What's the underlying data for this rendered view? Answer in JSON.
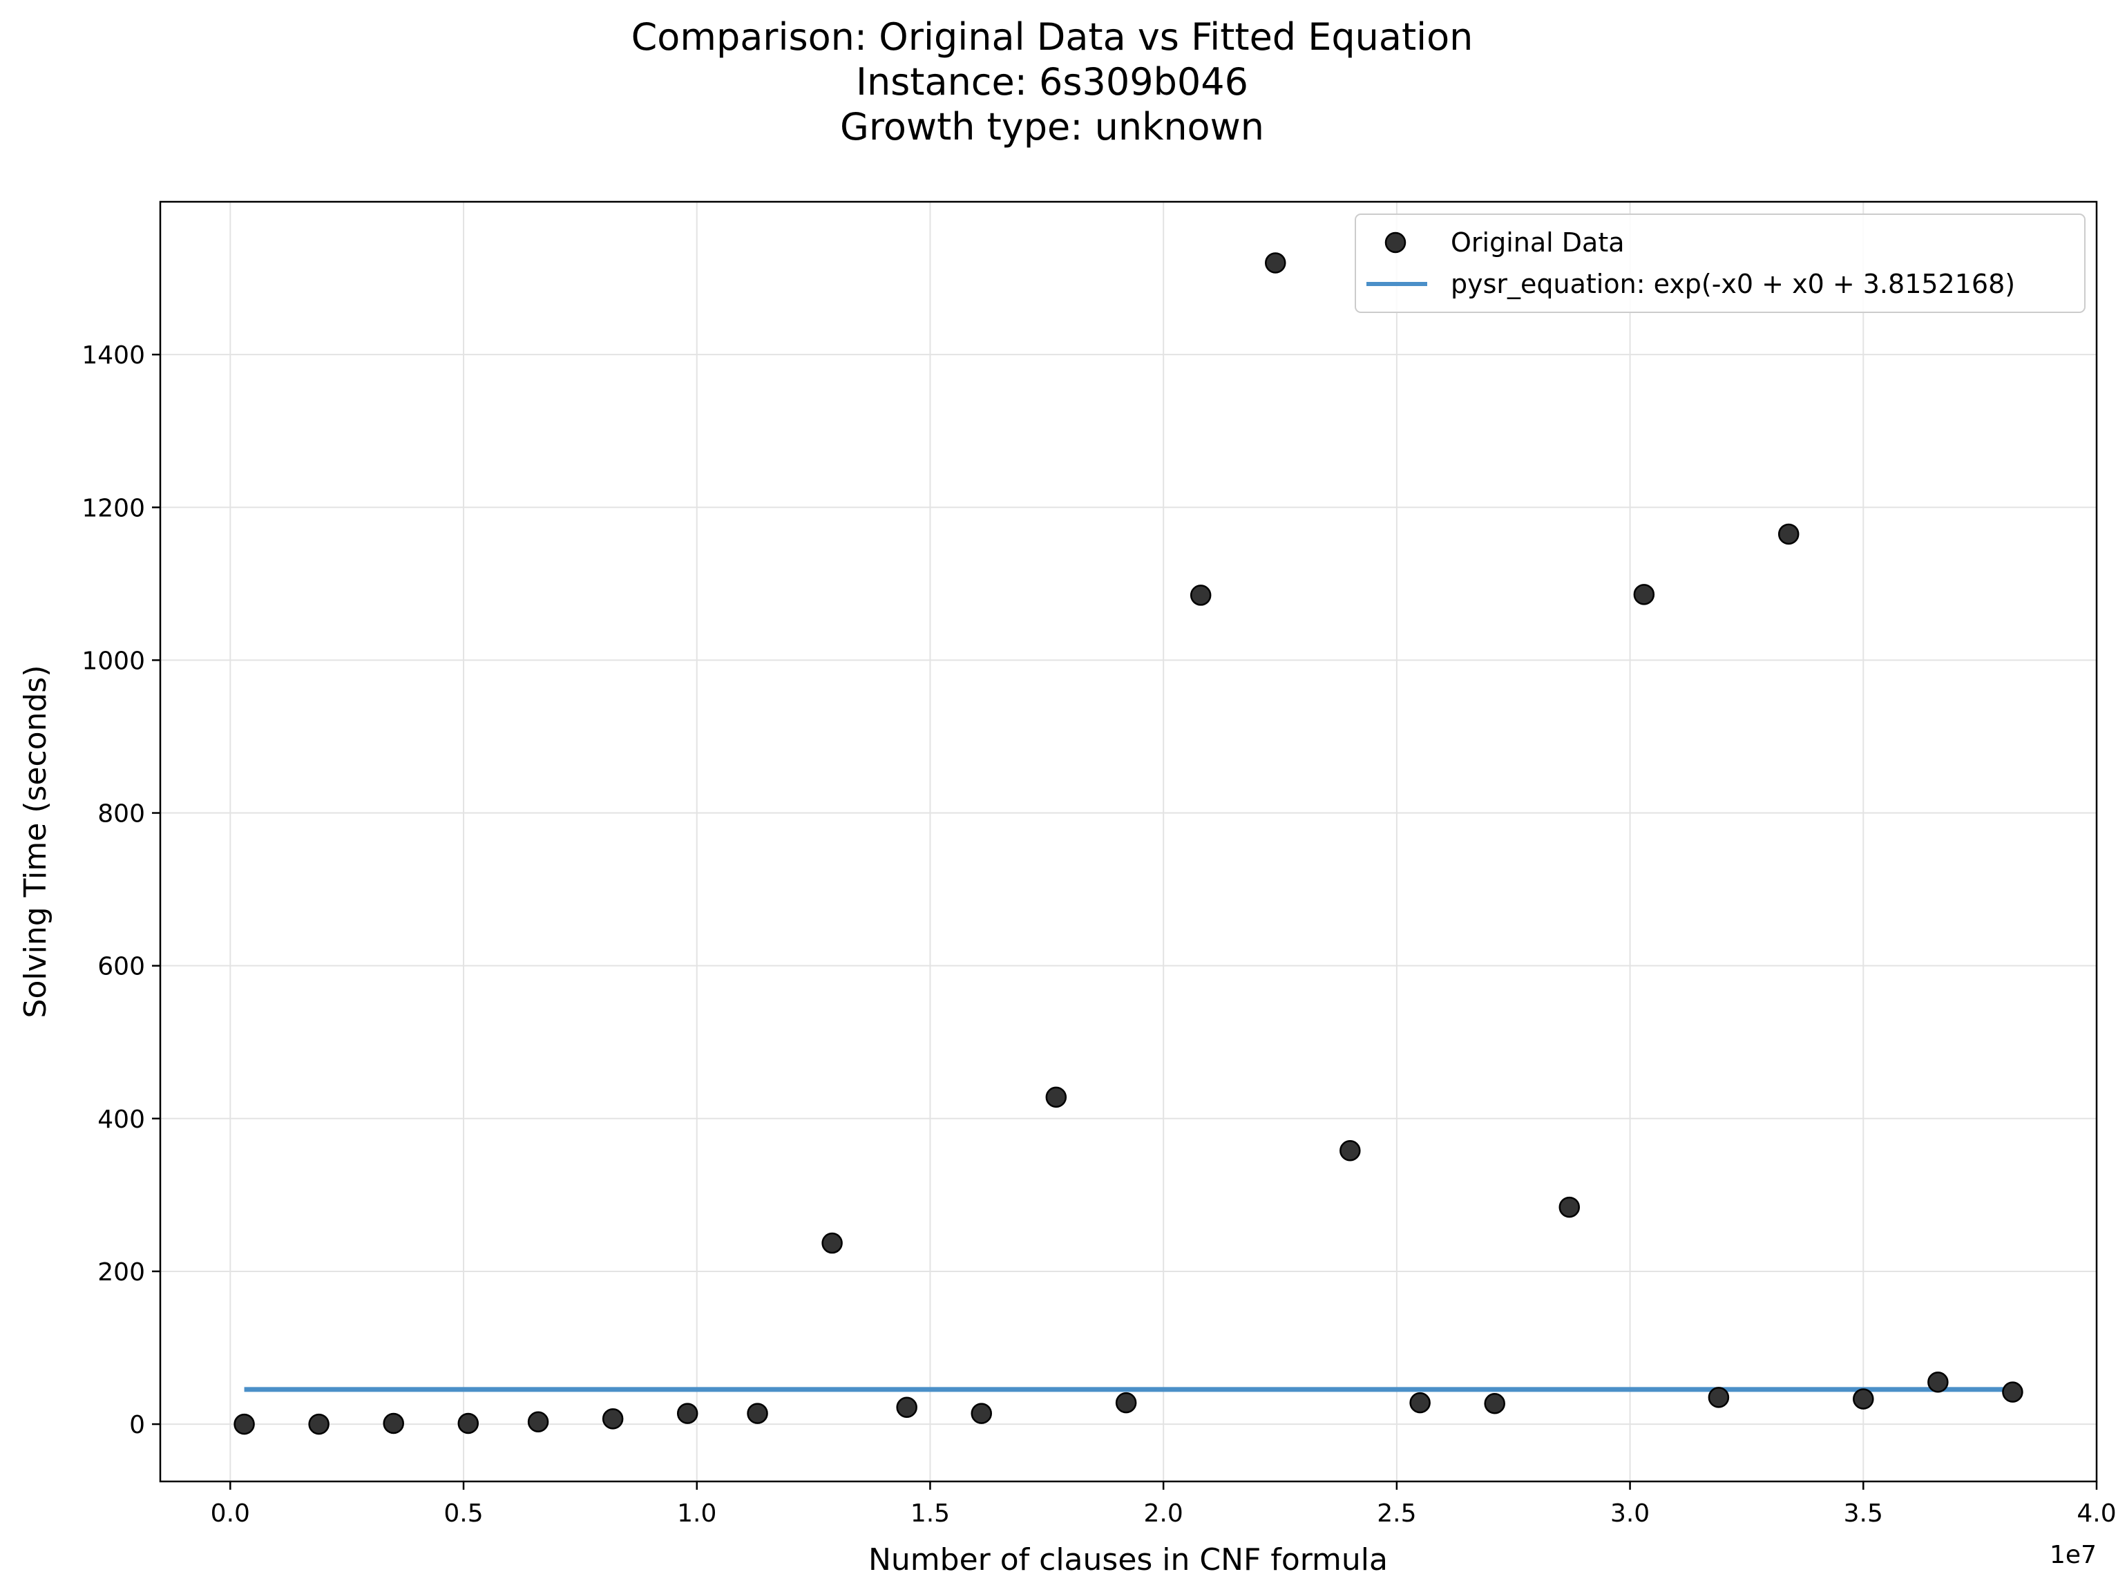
{
  "chart_data": {
    "type": "scatter",
    "title": [
      "Comparison: Original Data vs Fitted Equation",
      "Instance: 6s309b046",
      "Growth type: unknown"
    ],
    "xlabel": "Number of clauses in CNF formula",
    "ylabel": "Solving Time (seconds)",
    "x_offset_label": "1e7",
    "xlim": [
      -0.15,
      4.0
    ],
    "ylim": [
      -75,
      1600
    ],
    "xticks": [
      0.0,
      0.5,
      1.0,
      1.5,
      2.0,
      2.5,
      3.0,
      3.5,
      4.0
    ],
    "xtick_labels": [
      "0.0",
      "0.5",
      "1.0",
      "1.5",
      "2.0",
      "2.5",
      "3.0",
      "3.5",
      "4.0"
    ],
    "yticks": [
      0,
      200,
      400,
      600,
      800,
      1000,
      1200,
      1400
    ],
    "ytick_labels": [
      "0",
      "200",
      "400",
      "600",
      "800",
      "1000",
      "1200",
      "1400"
    ],
    "grid": true,
    "legend_position": "top-right",
    "series": [
      {
        "name": "Original Data",
        "kind": "scatter",
        "color": "#333333",
        "x": [
          0.03,
          0.19,
          0.35,
          0.51,
          0.66,
          0.82,
          0.98,
          1.13,
          1.29,
          1.45,
          1.61,
          1.77,
          1.92,
          2.08,
          2.24,
          2.4,
          2.55,
          2.71,
          2.87,
          3.03,
          3.19,
          3.34,
          3.5,
          3.66,
          3.82
        ],
        "y": [
          0,
          0,
          1,
          1,
          3,
          7,
          14,
          14,
          237,
          22,
          14,
          428,
          28,
          1085,
          1520,
          358,
          28,
          27,
          284,
          1086,
          35,
          1165,
          33,
          55,
          42
        ]
      },
      {
        "name": "pysr_equation: exp(-x0 + x0 + 3.8152168)",
        "kind": "line",
        "color": "#4a8fc8",
        "x": [
          0.03,
          3.82
        ],
        "y": [
          45.4,
          45.4
        ]
      }
    ]
  }
}
